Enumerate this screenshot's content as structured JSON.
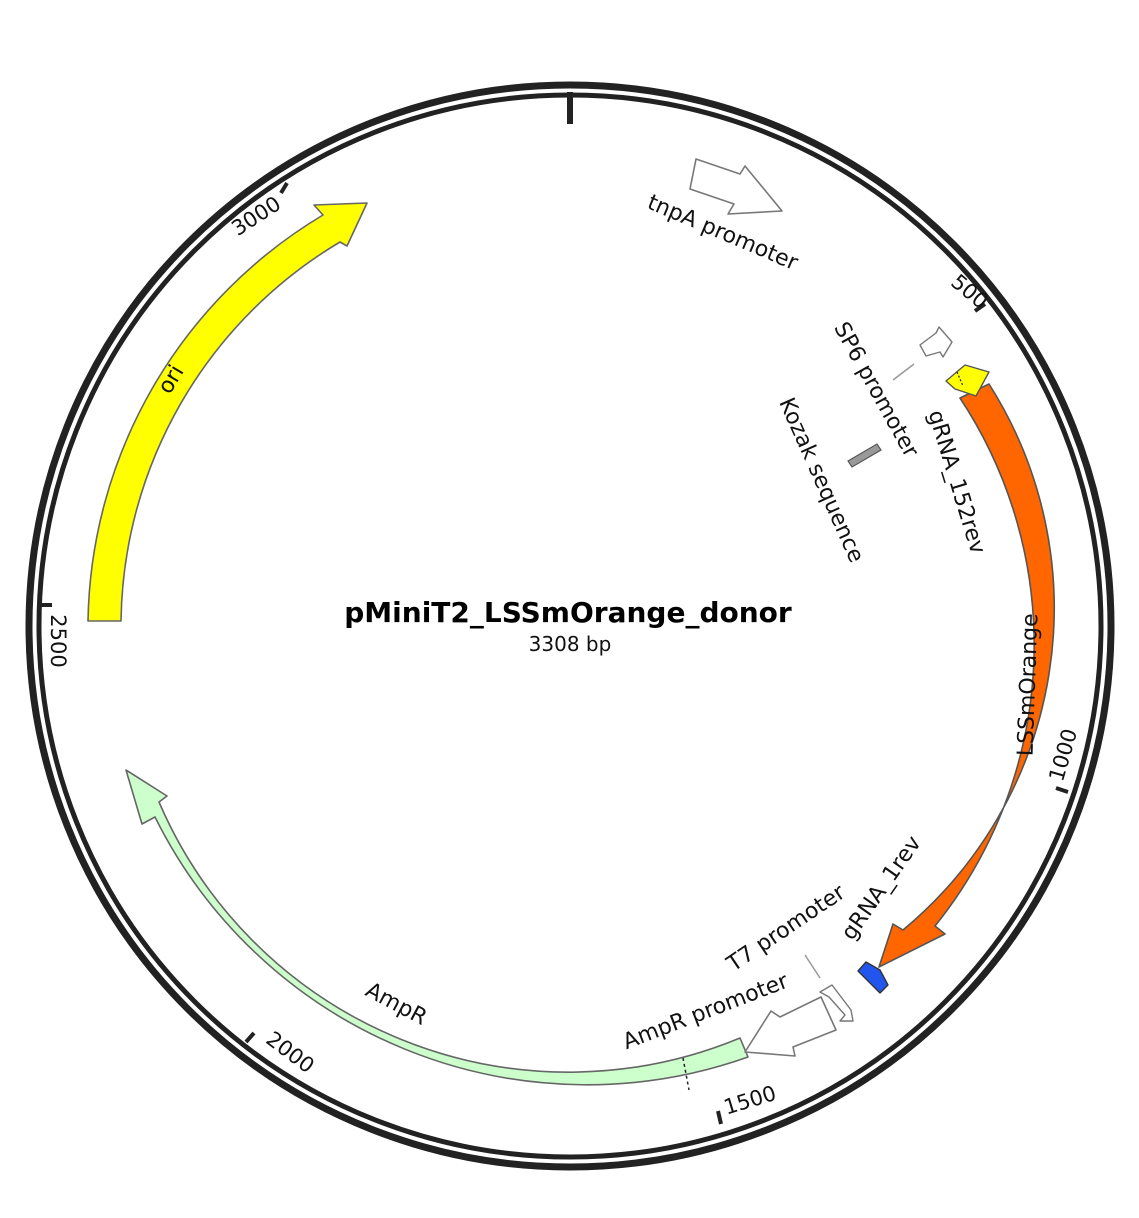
{
  "plasmid": {
    "name": "pMiniT2_LSSmOrange_donor",
    "length_label": "3308 bp",
    "length_bp": 3308
  },
  "ticks": [
    {
      "bp": 0,
      "label": ""
    },
    {
      "bp": 500,
      "label": "500"
    },
    {
      "bp": 1000,
      "label": "1000"
    },
    {
      "bp": 1500,
      "label": "1500"
    },
    {
      "bp": 2000,
      "label": "2000"
    },
    {
      "bp": 2500,
      "label": "2500"
    },
    {
      "bp": 3000,
      "label": "3000"
    }
  ],
  "features": [
    {
      "id": "ori",
      "label": "ori",
      "start": 2482,
      "end": 3068,
      "direction": "forward",
      "fill": "#ffff00",
      "label_color": "#111111",
      "label_inside": true
    },
    {
      "id": "lssmorange",
      "label": "LSSmOrange",
      "start": 580,
      "end": 1300,
      "direction": "forward",
      "fill": "#ff6600",
      "label_color": "#ffffff",
      "label_inside": true
    },
    {
      "id": "ampr",
      "label": "AmpR",
      "start": 1560,
      "end": 2270,
      "direction": "reverse",
      "fill": "#ccffcc",
      "label_color": "#111111",
      "label_inside": false
    },
    {
      "id": "gRNA_152rev",
      "label": "gRNA_152rev",
      "start": 555,
      "end": 578,
      "direction": "reverse",
      "fill": "#ffff00",
      "label_color": "#111111",
      "label_inside": false
    },
    {
      "id": "gRNA_1rev",
      "label": "gRNA_1rev",
      "start": 1318,
      "end": 1340,
      "direction": "reverse",
      "fill": "#2255ee",
      "label_color": "#111111",
      "label_inside": false
    },
    {
      "id": "tnpA_promoter",
      "label": "tnpA promoter",
      "start": 160,
      "end": 280,
      "direction": "forward",
      "fill": "#ffffff",
      "label_color": "#111111",
      "label_inside": false
    },
    {
      "id": "sp6_promoter",
      "label": "SP6 promoter",
      "start": 530,
      "end": 548,
      "direction": "reverse",
      "fill": "#ffffff",
      "label_color": "#111111",
      "label_inside": false
    },
    {
      "id": "kozak",
      "label": "Kozak sequence",
      "start": 570,
      "end": 580,
      "direction": "none",
      "fill": "#999999",
      "label_color": "#111111",
      "label_inside": false
    },
    {
      "id": "t7_promoter",
      "label": "T7 promoter",
      "start": 1358,
      "end": 1377,
      "direction": "reverse",
      "fill": "#ffffff",
      "label_color": "#111111",
      "label_inside": false
    },
    {
      "id": "ampr_promoter",
      "label": "AmpR promoter",
      "start": 1468,
      "end": 1562,
      "direction": "reverse",
      "fill": "#ffffff",
      "label_color": "#111111",
      "label_inside": false
    }
  ]
}
